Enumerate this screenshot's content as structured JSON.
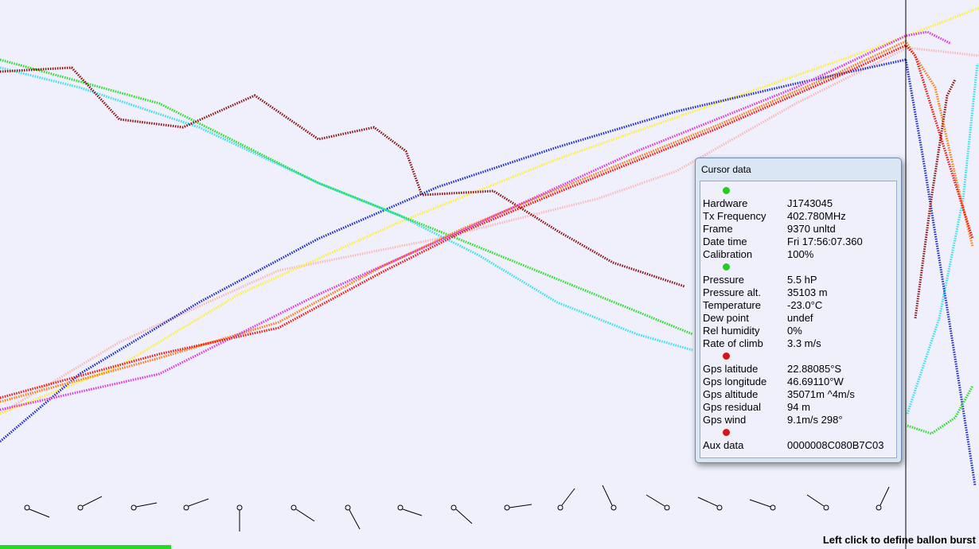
{
  "panel": {
    "title": "Cursor data",
    "groups": [
      {
        "status": "#22cc22",
        "rows": [
          [
            "Hardware",
            "J1743045"
          ],
          [
            "Tx Frequency",
            "402.780MHz"
          ],
          [
            "Frame",
            "9370 unltd"
          ],
          [
            "Date time",
            "Fri 17:56:07.360"
          ],
          [
            "Calibration",
            "100%"
          ]
        ]
      },
      {
        "status": "#22cc22",
        "rows": [
          [
            "Pressure",
            "5.5 hP"
          ],
          [
            "Pressure alt.",
            "35103 m"
          ],
          [
            "Temperature",
            "-23.0°C"
          ],
          [
            "Dew point",
            "undef"
          ],
          [
            "Rel humidity",
            "0%"
          ],
          [
            "Rate of climb",
            "3.3 m/s"
          ]
        ]
      },
      {
        "status": "#dd1111",
        "rows": [
          [
            "Gps latitude",
            "22.88085°S"
          ],
          [
            "Gps longitude",
            "46.69110°W"
          ],
          [
            "Gps altitude",
            "35071m ^4m/s"
          ],
          [
            "Gps residual",
            "94 m"
          ],
          [
            "Gps wind",
            "9.1m/s 298°"
          ]
        ]
      },
      {
        "status": "#dd1111",
        "rows": [
          [
            "Aux data",
            "0000008C080B7C03"
          ]
        ]
      }
    ]
  },
  "status_bar": {
    "hint": "Left click to define ballon burst"
  }
}
